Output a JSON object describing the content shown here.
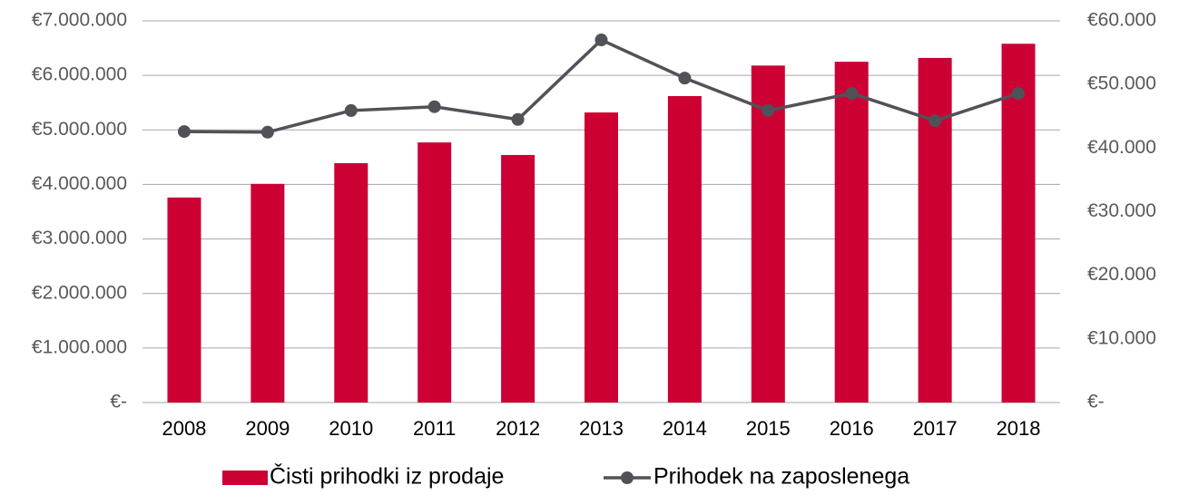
{
  "chart_data": {
    "type": "bar_line",
    "categories": [
      "2008",
      "2009",
      "2010",
      "2011",
      "2012",
      "2013",
      "2014",
      "2015",
      "2016",
      "2017",
      "2018"
    ],
    "series": [
      {
        "name": "Čisti prihodki iz prodaje",
        "type": "bar",
        "color": "#cc0033",
        "values": [
          3760000,
          4010000,
          4390000,
          4770000,
          4540000,
          5320000,
          5620000,
          6180000,
          6250000,
          6320000,
          6580000
        ]
      },
      {
        "name": "Prihodek na zaposlenega",
        "type": "line",
        "axis": "y2",
        "color": "#505257",
        "values": [
          42600,
          42500,
          45900,
          46500,
          44500,
          57000,
          51000,
          45900,
          48600,
          44300,
          48600
        ]
      }
    ],
    "ylim": [
      0,
      7000000
    ],
    "yticks": [
      {
        "value": 0,
        "label": "€-"
      },
      {
        "value": 1000000,
        "label": "€1.000.000"
      },
      {
        "value": 2000000,
        "label": "€2.000.000"
      },
      {
        "value": 3000000,
        "label": "€3.000.000"
      },
      {
        "value": 4000000,
        "label": "€4.000.000"
      },
      {
        "value": 5000000,
        "label": "€5.000.000"
      },
      {
        "value": 6000000,
        "label": "€6.000.000"
      },
      {
        "value": 7000000,
        "label": "€7.000.000"
      }
    ],
    "y2lim": [
      0,
      60000
    ],
    "y2ticks": [
      {
        "value": 0,
        "label": "€-"
      },
      {
        "value": 10000,
        "label": "€10.000"
      },
      {
        "value": 20000,
        "label": "€20.000"
      },
      {
        "value": 30000,
        "label": "€30.000"
      },
      {
        "value": 40000,
        "label": "€40.000"
      },
      {
        "value": 50000,
        "label": "€50.000"
      },
      {
        "value": 60000,
        "label": "€60.000"
      }
    ],
    "grid": true,
    "legend": "bottom"
  }
}
